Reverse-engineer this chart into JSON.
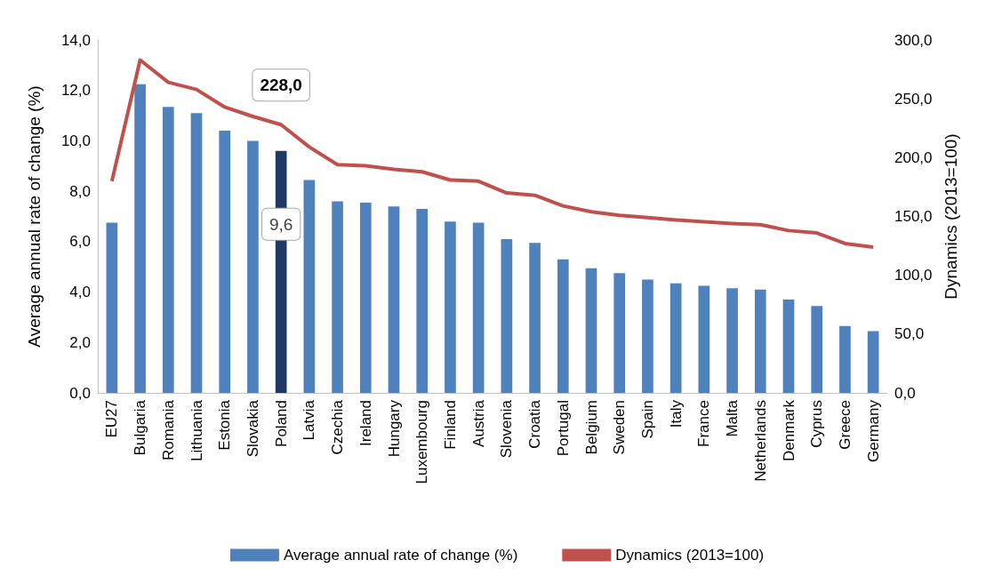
{
  "chart_data": {
    "type": "bar",
    "categories": [
      "EU27",
      "Bulgaria",
      "Romania",
      "Lithuania",
      "Estonia",
      "Slovakia",
      "Poland",
      "Latvia",
      "Czechia",
      "Ireland",
      "Hungary",
      "Luxembourg",
      "Finland",
      "Austria",
      "Slovenia",
      "Croatia",
      "Portugal",
      "Belgium",
      "Sweden",
      "Spain",
      "Italy",
      "France",
      "Malta",
      "Netherlands",
      "Denmark",
      "Cyprus",
      "Greece",
      "Germany"
    ],
    "series": [
      {
        "name": "Average annual rate of change (%)",
        "color": "#4f81bd",
        "colors": [
          "#4f81bd",
          "#4f81bd",
          "#4f81bd",
          "#4f81bd",
          "#4f81bd",
          "#4f81bd",
          "#1f3864",
          "#4f81bd",
          "#4f81bd",
          "#4f81bd",
          "#4f81bd",
          "#4f81bd",
          "#4f81bd",
          "#4f81bd",
          "#4f81bd",
          "#4f81bd",
          "#4f81bd",
          "#4f81bd",
          "#4f81bd",
          "#4f81bd",
          "#4f81bd",
          "#4f81bd",
          "#4f81bd",
          "#4f81bd",
          "#4f81bd",
          "#4f81bd",
          "#4f81bd",
          "#4f81bd"
        ],
        "values": [
          6.75,
          12.25,
          11.35,
          11.1,
          10.4,
          10.0,
          9.6,
          8.45,
          7.6,
          7.55,
          7.4,
          7.3,
          6.8,
          6.75,
          6.1,
          5.95,
          5.3,
          4.95,
          4.75,
          4.5,
          4.35,
          4.25,
          4.15,
          4.1,
          3.7,
          3.45,
          2.65,
          2.45
        ],
        "value_labels": [
          null,
          null,
          null,
          null,
          null,
          null,
          "9,6",
          null,
          null,
          null,
          null,
          null,
          null,
          null,
          null,
          null,
          null,
          null,
          null,
          null,
          null,
          null,
          null,
          null,
          null,
          null,
          null,
          null
        ]
      },
      {
        "name": "Dynamics (2013=100)",
        "type": "line",
        "axis": "y2",
        "color": "#c0504d",
        "values": [
          180,
          283,
          264,
          258,
          243,
          235,
          228,
          209,
          194,
          193,
          190,
          188,
          181,
          180,
          170,
          168,
          159,
          154,
          151,
          149,
          147,
          145.5,
          144,
          143,
          138,
          136,
          127,
          124
        ],
        "value_labels": [
          null,
          null,
          null,
          null,
          null,
          null,
          "228,0",
          null,
          null,
          null,
          null,
          null,
          null,
          null,
          null,
          null,
          null,
          null,
          null,
          null,
          null,
          null,
          null,
          null,
          null,
          null,
          null,
          null
        ]
      }
    ],
    "ylabel": "Average annual rate of change (%)",
    "y2label": "Dynamics (2013=100)",
    "ylim": [
      0,
      14
    ],
    "yticks": [
      {
        "value": 0,
        "label": "0,0"
      },
      {
        "value": 2,
        "label": "2,0"
      },
      {
        "value": 4,
        "label": "4,0"
      },
      {
        "value": 6,
        "label": "6,0"
      },
      {
        "value": 8,
        "label": "8,0"
      },
      {
        "value": 10,
        "label": "10,0"
      },
      {
        "value": 12,
        "label": "12,0"
      },
      {
        "value": 14,
        "label": "14,0"
      }
    ],
    "y2lim": [
      0,
      300
    ],
    "y2ticks": [
      {
        "value": 0,
        "label": "0,0"
      },
      {
        "value": 50,
        "label": "50,0"
      },
      {
        "value": 100,
        "label": "100,0"
      },
      {
        "value": 150,
        "label": "150,0"
      },
      {
        "value": 200,
        "label": "200,0"
      },
      {
        "value": 250,
        "label": "250,0"
      },
      {
        "value": 300,
        "label": "300,0"
      }
    ],
    "legend": "bottom",
    "marker": "none",
    "line_style": "solid"
  }
}
